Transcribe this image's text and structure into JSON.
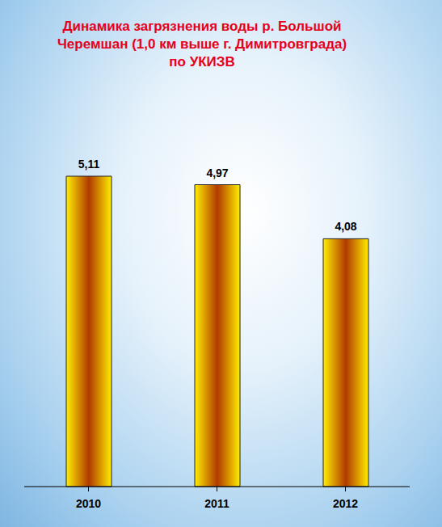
{
  "chart_data": {
    "type": "bar",
    "title": "Динамика загрязнения воды р. Большой Черемшан (1,0 км выше г. Димитровграда) по УКИЗВ",
    "categories": [
      "2010",
      "2011",
      "2012"
    ],
    "values": [
      5.11,
      4.97,
      4.08
    ],
    "value_labels": [
      "5,11",
      "4,97",
      "4,08"
    ],
    "color": "#ffee00",
    "data_labels": true,
    "tick_labels": "x",
    "grid": false
  }
}
